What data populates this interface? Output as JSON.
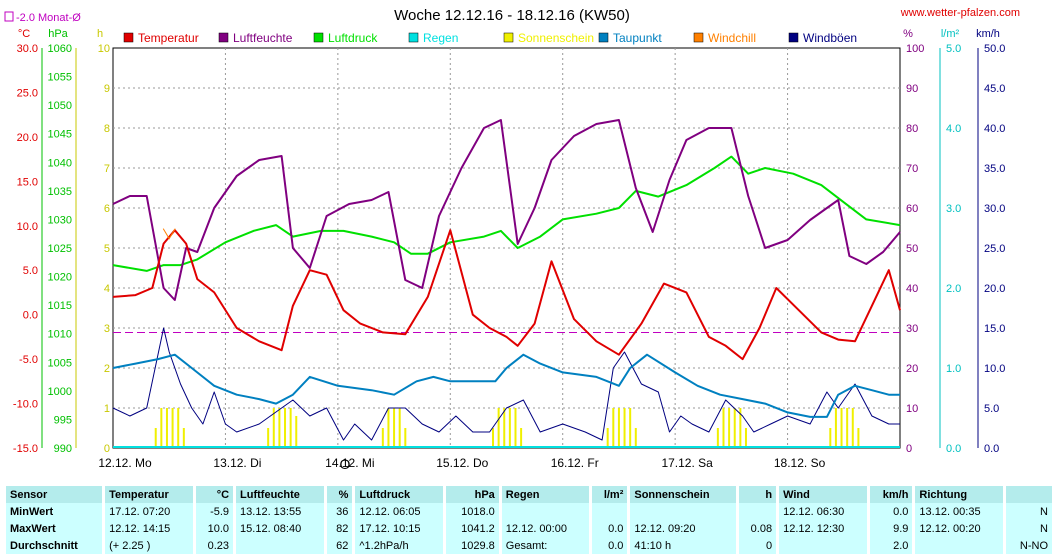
{
  "header": {
    "title": "Woche 12.12.16 - 18.12.16 (KW50)",
    "website": "www.wetter-pfalzen.com",
    "avg_marker": "-2.0 Monat-Ø"
  },
  "legend": [
    {
      "name": "Temperatur",
      "color": "#e00000"
    },
    {
      "name": "Luftfeuchte",
      "color": "#800080"
    },
    {
      "name": "Luftdruck",
      "color": "#00e000"
    },
    {
      "name": "Regen",
      "color": "#00e0e0"
    },
    {
      "name": "Sonnenschein",
      "color": "#f0f000"
    },
    {
      "name": "Taupunkt",
      "color": "#0080c0"
    },
    {
      "name": "Windchill",
      "color": "#ff8000"
    },
    {
      "name": "Windböen",
      "color": "#000080"
    }
  ],
  "axes": {
    "temp": {
      "unit": "°C",
      "ticks": [
        "30.0",
        "25.0",
        "20.0",
        "15.0",
        "10.0",
        "5.0",
        "0.0",
        "-5.0",
        "-10.0",
        "-15.0"
      ],
      "color": "#e00000"
    },
    "pressure": {
      "unit": "hPa",
      "ticks": [
        "1060",
        "1055",
        "1050",
        "1045",
        "1040",
        "1035",
        "1030",
        "1025",
        "1020",
        "1015",
        "1010",
        "1005",
        "1000",
        "995",
        "990"
      ],
      "color": "#00c000"
    },
    "sun": {
      "unit": "h",
      "ticks": [
        "10",
        "9",
        "8",
        "7",
        "6",
        "5",
        "4",
        "3",
        "2",
        "1",
        "0"
      ],
      "color": "#c8c800"
    },
    "humidity": {
      "unit": "%",
      "ticks": [
        "100",
        "90",
        "80",
        "70",
        "60",
        "50",
        "40",
        "30",
        "20",
        "10",
        "0"
      ],
      "color": "#800080"
    },
    "rain": {
      "unit": "l/m²",
      "ticks": [
        "5.0",
        "4.0",
        "3.0",
        "2.0",
        "1.0",
        "0.0"
      ],
      "color": "#00c0c0"
    },
    "wind": {
      "unit": "km/h",
      "ticks": [
        "50.0",
        "45.0",
        "40.0",
        "35.0",
        "30.0",
        "25.0",
        "20.0",
        "15.0",
        "10.0",
        "5.0",
        "0.0"
      ],
      "color": "#000080"
    },
    "days": [
      "12.12. Mo",
      "13.12. Di",
      "14.12. Mi",
      "15.12. Do",
      "16.12. Fr",
      "17.12. Sa",
      "18.12. So"
    ]
  },
  "chart_data": {
    "type": "line",
    "title": "Woche 12.12.16 - 18.12.16 (KW50)",
    "x_unit": "days since 12.12. 00:00",
    "xlim": [
      0,
      7
    ],
    "temp_avg_line": -2.0,
    "series": [
      {
        "name": "Temperatur",
        "axis": "temp",
        "color": "#e00000",
        "x": [
          0,
          0.2,
          0.35,
          0.45,
          0.55,
          0.65,
          0.75,
          0.9,
          1.1,
          1.3,
          1.5,
          1.6,
          1.75,
          1.9,
          2.05,
          2.2,
          2.4,
          2.6,
          2.8,
          3.0,
          3.2,
          3.35,
          3.5,
          3.6,
          3.75,
          3.9,
          4.1,
          4.3,
          4.5,
          4.7,
          4.9,
          5.1,
          5.3,
          5.45,
          5.6,
          5.75,
          5.9,
          6.1,
          6.3,
          6.45,
          6.6,
          6.75,
          6.9,
          7.0
        ],
        "y": [
          2,
          2.2,
          3,
          8,
          9.5,
          8,
          4,
          2.5,
          -1.5,
          -3,
          -4,
          1,
          5,
          4.5,
          0.5,
          -1,
          -2,
          -2.2,
          2,
          9.5,
          0,
          -1.5,
          -2.5,
          -3.5,
          -1,
          6,
          -0.5,
          -3,
          -4.5,
          -1,
          3.5,
          2.5,
          -2.5,
          -3.5,
          -5,
          -1.5,
          3,
          0.5,
          -2,
          -2.8,
          -3,
          1,
          5,
          0.5
        ]
      },
      {
        "name": "Luftfeuchte",
        "axis": "humidity",
        "color": "#800080",
        "x": [
          0,
          0.15,
          0.3,
          0.45,
          0.55,
          0.65,
          0.75,
          0.9,
          1.1,
          1.3,
          1.5,
          1.6,
          1.75,
          1.9,
          2.1,
          2.3,
          2.45,
          2.6,
          2.75,
          2.9,
          3.1,
          3.3,
          3.45,
          3.6,
          3.75,
          3.9,
          4.1,
          4.3,
          4.5,
          4.65,
          4.8,
          4.95,
          5.1,
          5.3,
          5.5,
          5.65,
          5.8,
          6.0,
          6.2,
          6.35,
          6.45,
          6.55,
          6.7,
          6.85,
          7.0
        ],
        "y": [
          61,
          63,
          63,
          40,
          37,
          50,
          49,
          60,
          68,
          72,
          73,
          50,
          45,
          58,
          61,
          62,
          64,
          42,
          40,
          58,
          70,
          80,
          82,
          51,
          60,
          72,
          78,
          81,
          82,
          65,
          54,
          67,
          77,
          80,
          80,
          63,
          50,
          52,
          57,
          60,
          62,
          48,
          46,
          49,
          54
        ]
      },
      {
        "name": "Luftdruck",
        "axis": "pressure",
        "color": "#00e000",
        "x": [
          0,
          0.3,
          0.45,
          0.6,
          0.75,
          1.0,
          1.25,
          1.45,
          1.6,
          1.85,
          2.05,
          2.3,
          2.5,
          2.65,
          2.8,
          3.0,
          3.3,
          3.45,
          3.6,
          3.8,
          4.0,
          4.3,
          4.5,
          4.65,
          4.85,
          5.1,
          5.35,
          5.5,
          5.65,
          5.8,
          6.05,
          6.3,
          6.5,
          6.7,
          7.0
        ],
        "y": [
          1022,
          1021,
          1022,
          1022,
          1023,
          1026,
          1028,
          1029,
          1027,
          1028,
          1028,
          1027,
          1026,
          1024,
          1024,
          1026,
          1027,
          1028,
          1025,
          1027,
          1030,
          1031,
          1032,
          1035,
          1034,
          1036,
          1039,
          1041,
          1038,
          1039,
          1038,
          1036,
          1033,
          1030,
          1029
        ]
      },
      {
        "name": "Taupunkt",
        "axis": "temp",
        "color": "#0080c0",
        "x": [
          0,
          0.2,
          0.4,
          0.55,
          0.7,
          0.9,
          1.1,
          1.3,
          1.45,
          1.6,
          1.75,
          2.0,
          2.3,
          2.5,
          2.7,
          2.85,
          3.0,
          3.4,
          3.5,
          3.65,
          3.8,
          4.0,
          4.3,
          4.5,
          4.6,
          4.75,
          5.0,
          5.2,
          5.4,
          5.6,
          5.8,
          6.0,
          6.2,
          6.35,
          6.45,
          6.6,
          6.75,
          6.9,
          7.0
        ],
        "y": [
          -6,
          -5.5,
          -5,
          -4.5,
          -6,
          -8,
          -9,
          -9.5,
          -10,
          -9,
          -7,
          -8,
          -8.5,
          -9,
          -7.5,
          -7,
          -7.5,
          -7.5,
          -6,
          -4.5,
          -5.5,
          -6.5,
          -7,
          -8,
          -6,
          -4.5,
          -6.5,
          -8,
          -9,
          -9.5,
          -10,
          -11,
          -11.5,
          -11.5,
          -9,
          -8,
          -8.5,
          -9,
          -9
        ]
      },
      {
        "name": "Windböen",
        "axis": "wind",
        "color": "#000080",
        "x": [
          0,
          0.15,
          0.3,
          0.45,
          0.5,
          0.6,
          0.7,
          0.8,
          0.9,
          1.0,
          1.1,
          1.3,
          1.5,
          1.6,
          1.75,
          1.9,
          2.05,
          2.15,
          2.3,
          2.45,
          2.6,
          2.75,
          2.9,
          3.05,
          3.2,
          3.35,
          3.5,
          3.65,
          3.8,
          4.0,
          4.2,
          4.35,
          4.45,
          4.55,
          4.7,
          4.85,
          4.95,
          5.05,
          5.15,
          5.3,
          5.45,
          5.6,
          5.7,
          5.85,
          6.0,
          6.2,
          6.35,
          6.45,
          6.6,
          6.75,
          6.9,
          7.0
        ],
        "y": [
          5,
          4,
          5,
          15,
          12,
          8,
          5,
          3,
          7,
          3,
          2,
          3,
          5,
          6,
          4,
          5,
          1,
          3,
          1,
          5,
          5,
          3,
          2,
          4,
          2,
          2,
          5,
          6,
          2,
          3,
          2,
          1,
          10,
          12,
          8,
          7,
          2,
          4,
          3,
          2,
          6,
          4,
          2,
          3,
          4,
          3,
          7,
          5,
          8,
          4,
          3,
          3
        ]
      }
    ],
    "sunshine": {
      "name": "Sonnenschein",
      "axis": "sun",
      "color": "#f0f000",
      "x": [
        0.38,
        0.43,
        0.48,
        0.53,
        0.58,
        0.63,
        1.38,
        1.43,
        1.48,
        1.53,
        1.58,
        1.63,
        2.4,
        2.45,
        2.5,
        2.55,
        2.6,
        3.38,
        3.43,
        3.48,
        3.53,
        3.58,
        3.63,
        4.4,
        4.45,
        4.5,
        4.55,
        4.6,
        4.65,
        5.38,
        5.43,
        5.48,
        5.53,
        5.58,
        5.63,
        6.38,
        6.43,
        6.48,
        6.53,
        6.58,
        6.63
      ],
      "y": [
        0.5,
        1.0,
        1.0,
        1.0,
        1.0,
        0.5,
        0.5,
        1.0,
        1.0,
        1.0,
        1.0,
        0.8,
        0.5,
        1.0,
        1.0,
        1.0,
        0.5,
        0.5,
        1.0,
        1.0,
        1.0,
        1.0,
        0.5,
        0.5,
        1.0,
        1.0,
        1.0,
        1.0,
        0.5,
        0.5,
        1.0,
        1.0,
        1.0,
        1.0,
        0.5,
        0.5,
        1.0,
        1.0,
        1.0,
        1.0,
        0.5
      ]
    }
  },
  "stats": {
    "headers": {
      "sensor": "Sensor",
      "temp": "Temperatur",
      "temp_unit": "°C",
      "hum": "Luftfeuchte",
      "hum_unit": "%",
      "press": "Luftdruck",
      "press_unit": "hPa",
      "rain": "Regen",
      "rain_unit": "l/m²",
      "sun": "Sonnenschein",
      "sun_unit": "h",
      "wind": "Wind",
      "wind_unit": "km/h",
      "dir": "Richtung"
    },
    "min": {
      "label": "MinWert",
      "temp_t": "17.12. 07:20",
      "temp_v": "-5.9",
      "hum_t": "13.12. 13:55",
      "hum_v": "36",
      "press_t": "12.12. 06:05",
      "press_v": "1018.0",
      "rain_t": "",
      "rain_v": "",
      "sun_t": "",
      "sun_v": "",
      "wind_t": "12.12. 06:30",
      "wind_v": "0.0",
      "dir_t": "13.12. 00:35",
      "dir_v": "N"
    },
    "max": {
      "label": "MaxWert",
      "temp_t": "12.12. 14:15",
      "temp_v": "10.0",
      "hum_t": "15.12. 08:40",
      "hum_v": "82",
      "press_t": "17.12. 10:15",
      "press_v": "1041.2",
      "rain_t": "12.12. 00:00",
      "rain_v": "0.0",
      "sun_t": "12.12. 09:20",
      "sun_v": "0.08",
      "wind_t": "12.12. 12:30",
      "wind_v": "9.9",
      "dir_t": "12.12. 00:20",
      "dir_v": "N"
    },
    "avg": {
      "label": "Durchschnitt",
      "temp_t": "(+ 2.25 )",
      "temp_v": "0.23",
      "hum_t": "",
      "hum_v": "62",
      "press_t": "^1.2hPa/h",
      "press_v": "1029.8",
      "rain_t": "Gesamt:",
      "rain_v": "0.0",
      "sun_t": "41:10 h",
      "sun_v": "0",
      "wind_t": "",
      "wind_v": "2.0",
      "dir_t": "",
      "dir_v": "N-NO"
    }
  }
}
